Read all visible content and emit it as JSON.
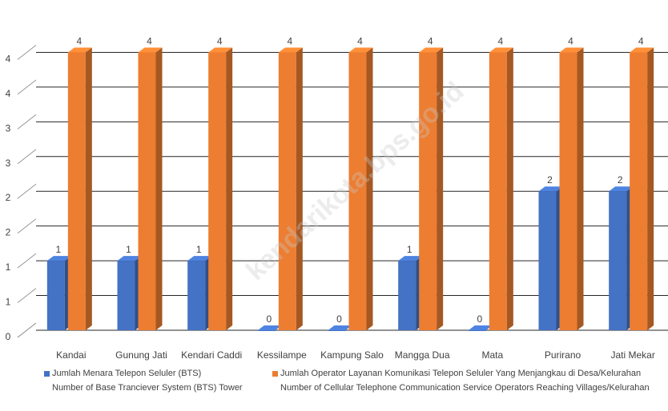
{
  "chart_data": {
    "type": "bar",
    "categories": [
      "Kandai",
      "Gunung Jati",
      "Kendari Caddi",
      "Kessilampe",
      "Kampung Salo",
      "Mangga Dua",
      "Mata",
      "Purirano",
      "Jati Mekar"
    ],
    "series": [
      {
        "name": "Jumlah Menara Telepon Seluler (BTS) / Number of Base Tranciever System (BTS) Tower",
        "name_line1": "Jumlah Menara Telepon Seluler (BTS)",
        "name_line2": "Number of Base Tranciever System (BTS) Tower",
        "color": "#4472c4",
        "values": [
          1,
          1,
          1,
          0,
          0,
          1,
          0,
          2,
          2
        ]
      },
      {
        "name": "Jumlah Operator Layanan Komunikasi Telepon Seluler Yang Menjangkau di Desa/Kelurahan / Number of Cellular Telephone Communication Service Operators Reaching Villages/Kelurahan",
        "name_line1": "Jumlah Operator Layanan Komunikasi Telepon Seluler Yang Menjangkau di Desa/Kelurahan",
        "name_line2": "Number of Cellular Telephone Communication Service Operators Reaching Villages/Kelurahan",
        "color": "#ed7d31",
        "values": [
          4,
          4,
          4,
          4,
          4,
          4,
          4,
          4,
          4
        ]
      }
    ],
    "y_tick_labels": [
      "0",
      "1",
      "1",
      "2",
      "2",
      "3",
      "3",
      "4",
      "4"
    ],
    "ylim": [
      0,
      4.5
    ],
    "grid": true,
    "legend_position": "bottom",
    "watermark": "kendarikota.bps.go.id"
  }
}
